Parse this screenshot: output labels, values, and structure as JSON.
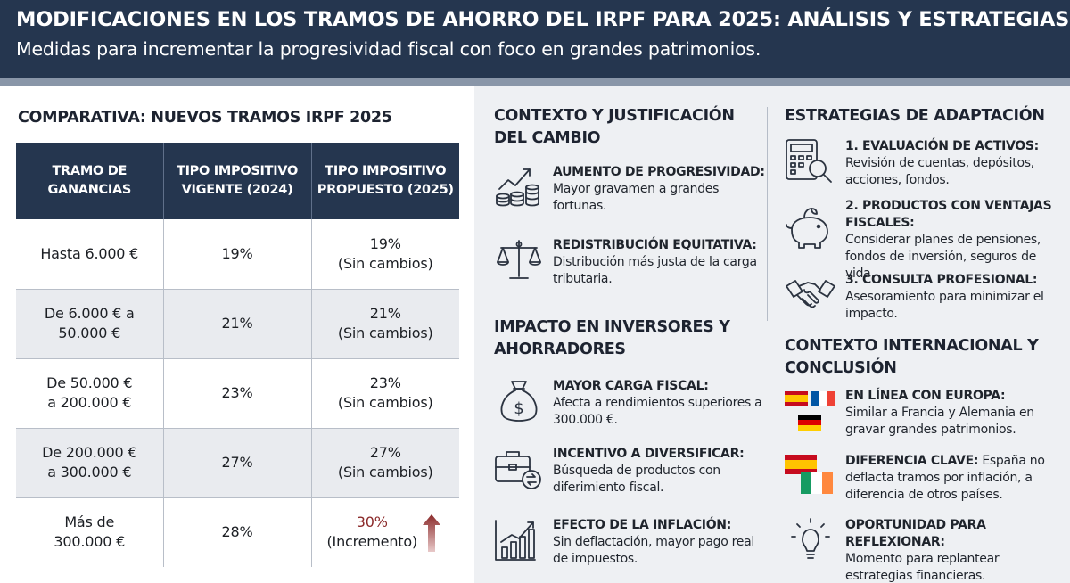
{
  "header": {
    "title": "MODIFICACIONES EN LOS TRAMOS DE AHORRO DEL IRPF PARA 2025: ANÁLISIS Y ESTRATEGIAS",
    "subtitle": "Medidas para incrementar la progresividad fiscal con foco en grandes patrimonios."
  },
  "comparison": {
    "title": "COMPARATIVA: NUEVOS TRAMOS IRPF 2025",
    "headers": [
      "TRAMO DE GANANCIAS",
      "TIPO IMPOSITIVO VIGENTE (2024)",
      "TIPO IMPOSITIVO PROPUESTO (2025)"
    ],
    "rows": [
      {
        "tramo": "Hasta 6.000 €",
        "vigente": "19%",
        "propuesto": "19%",
        "nota": "(Sin cambios)"
      },
      {
        "tramo": "De 6.000 € a 50.000 €",
        "vigente": "21%",
        "propuesto": "21%",
        "nota": "(Sin cambios)"
      },
      {
        "tramo": "De 50.000 € a 200.000 €",
        "vigente": "23%",
        "propuesto": "23%",
        "nota": "(Sin cambios)"
      },
      {
        "tramo": "De 200.000 € a 300.000 €",
        "vigente": "27%",
        "propuesto": "27%",
        "nota": "(Sin cambios)"
      },
      {
        "tramo": "Más de 300.000 €",
        "vigente": "28%",
        "propuesto": "30%",
        "nota": "(Incremento)"
      }
    ]
  },
  "context": {
    "title": "CONTEXTO Y JUSTIFICACIÓN DEL CAMBIO",
    "items": [
      {
        "icon": "growth-chart-coins-icon",
        "label": "AUMENTO DE PROGRESIVIDAD:",
        "text": "Mayor gravamen a grandes fortunas."
      },
      {
        "icon": "balance-scale-icon",
        "label": "REDISTRIBUCIÓN EQUITATIVA:",
        "text": "Distribución más justa de la carga tributaria."
      }
    ]
  },
  "impact": {
    "title": "IMPACTO EN INVERSORES Y AHORRADORES",
    "items": [
      {
        "icon": "money-bag-icon",
        "label": "MAYOR CARGA FISCAL:",
        "text": "Afecta a rendimientos superiores a 300.000 €."
      },
      {
        "icon": "briefcase-exchange-icon",
        "label": "INCENTIVO A DIVERSIFICAR:",
        "text": "Búsqueda de productos con diferimiento fiscal."
      },
      {
        "icon": "rising-bars-icon",
        "label": "EFECTO DE LA INFLACIÓN:",
        "text": "Sin deflactación, mayor pago real de impuestos."
      }
    ]
  },
  "strategies": {
    "title": "ESTRATEGIAS DE ADAPTACIÓN",
    "items": [
      {
        "icon": "calculator-magnifier-icon",
        "label": "1. EVALUACIÓN DE ACTIVOS:",
        "text": "Revisión de cuentas, depósitos, acciones, fondos."
      },
      {
        "icon": "piggy-bank-icon",
        "label": "2. PRODUCTOS CON VENTAJAS FISCALES:",
        "text": "Considerar planes de pensiones, fondos de inversión, seguros de vida."
      },
      {
        "icon": "handshake-icon",
        "label": "3. CONSULTA PROFESIONAL:",
        "text": "Asesoramiento para minimizar el impacto."
      }
    ]
  },
  "international": {
    "title": "CONTEXTO INTERNACIONAL Y CONCLUSIÓN",
    "items": [
      {
        "icon": "eu-flags-icon",
        "label": "EN LÍNEA CON EUROPA:",
        "text": "Similar a Francia y Alemania en gravar grandes patrimonios."
      },
      {
        "icon": "spain-ireland-flags-icon",
        "label": "DIFERENCIA CLAVE:",
        "text": "España no deflacta tramos por inflación, a diferencia de otros países."
      },
      {
        "icon": "lightbulb-icon",
        "label": "OPORTUNIDAD PARA REFLEXIONAR:",
        "text": "Momento para replantear estrategias financieras."
      }
    ]
  },
  "colors": {
    "header": "#25364f",
    "accent_red": "#8b2a2a",
    "panel": "#eef0f3"
  }
}
